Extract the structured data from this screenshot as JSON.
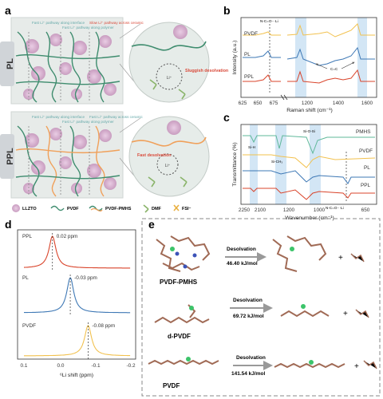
{
  "panels": {
    "a": {
      "letter": "a",
      "pl_label": "PL",
      "ppl_label": "PPL",
      "pl_notes": [
        "Fast Li⁺ pathway along interface",
        "Fast Li⁺ pathway along polymer",
        "Slow Li⁺ pathway across ceramic"
      ],
      "ppl_notes": [
        "Fast Li⁺ pathway along interface",
        "Fast Li⁺ pathway along polymer",
        "Fast Li⁺ pathway across ceramic"
      ],
      "pl_zoom_text": "Sluggish desolvation",
      "ppl_zoom_text": "Fast desolvation",
      "li_symbol": "Li⁺",
      "legend": [
        "LLZTO",
        "PVDF",
        "PVDF-PMHS",
        "DMF",
        "FSI⁻"
      ]
    },
    "b": {
      "letter": "b",
      "ylabel": "Intensity (a.u.)",
      "xlabel": "Raman shift (cm⁻¹)",
      "xticks": [
        "625",
        "650",
        "675",
        "1200",
        "1400",
        "1600"
      ],
      "series": [
        "PVDF",
        "PL",
        "PPL"
      ],
      "annot1": "N-C=O···Li",
      "annot2": "C=C"
    },
    "c": {
      "letter": "c",
      "ylabel": "Transmittance (%)",
      "xlabel": "Wavenumber (cm⁻¹)",
      "xticks": [
        "2250",
        "2100",
        "1200",
        "1000",
        "650"
      ],
      "series": [
        "PMHS",
        "PVDF",
        "PL",
        "PPL"
      ],
      "annots": [
        "Si-H",
        "Si-CH₃",
        "Si-O-Si",
        "N-C=O···Li"
      ]
    },
    "d": {
      "letter": "d",
      "xlabel": "⁶Li shift (ppm)",
      "xticks": [
        "0.1",
        "0.0",
        "-0.1",
        "-0.2"
      ],
      "spectra": [
        {
          "name": "PPL",
          "shift": "0.02 ppm",
          "peak": 0.02,
          "color": "#d9442b"
        },
        {
          "name": "PL",
          "shift": "-0.03 ppm",
          "peak": -0.03,
          "color": "#3e78b5"
        },
        {
          "name": "PVDF",
          "shift": "-0.08 ppm",
          "peak": -0.08,
          "color": "#f2c14e"
        }
      ]
    },
    "e": {
      "letter": "e",
      "rows": [
        {
          "name": "PVDF-PMHS",
          "process": "Desolvation",
          "energy": "46.40 kJ/mol"
        },
        {
          "name": "d-PVDF",
          "process": "Desolvation",
          "energy": "69.72 kJ/mol"
        },
        {
          "name": "PVDF",
          "process": "Desolvation",
          "energy": "141.54 kJ/mol"
        }
      ],
      "plus": "+"
    }
  },
  "colors": {
    "ppl": "#d9442b",
    "pl": "#3e78b5",
    "pvdf": "#f2c14e",
    "pmhs": "#5fb89a",
    "band": "#d3e6f5",
    "llzto": "#dcb8d6",
    "chain_green": "#3e8c6e",
    "chain_orange": "#f0a05a"
  }
}
